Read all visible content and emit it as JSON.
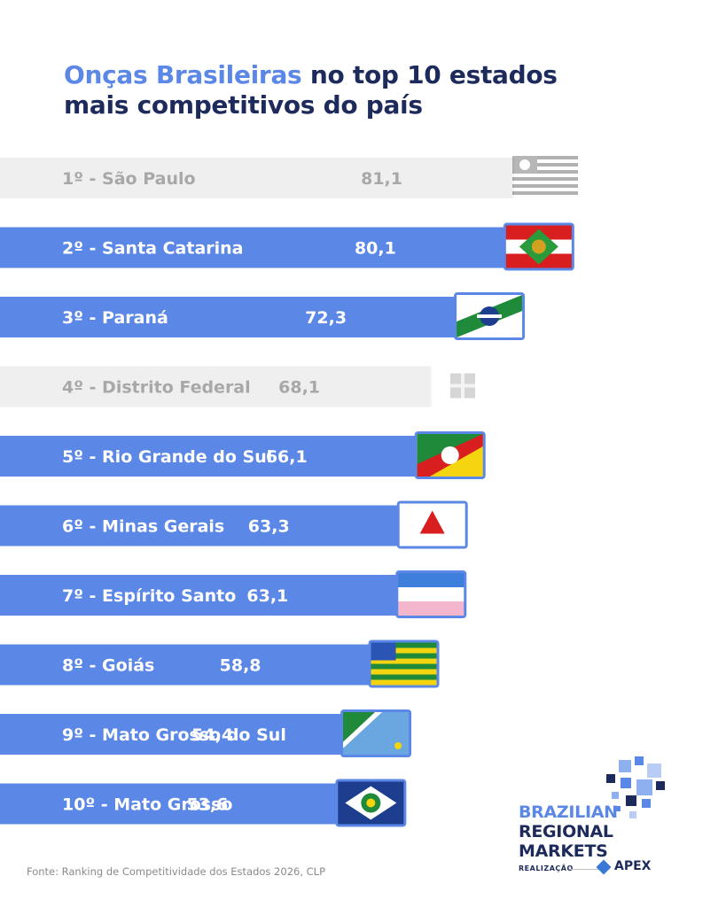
{
  "title": {
    "highlight": "Onças Brasileiras",
    "rest_line1": " no top 10 estados",
    "line2": "mais competitivos do país"
  },
  "chart_data": {
    "type": "bar",
    "orientation": "horizontal",
    "categories": [
      "1º - São Paulo",
      "2º - Santa Catarina",
      "3º - Paraná",
      "4º - Distrito Federal",
      "5º - Rio Grande do Sul",
      "6º - Minas Gerais",
      "7º - Espírito Santo",
      "8º - Goiás",
      "9º - Mato Grosso do Sul",
      "10º - Mato Grosso"
    ],
    "values": [
      81.1,
      80.1,
      72.3,
      68.1,
      66.1,
      63.3,
      63.1,
      58.8,
      54.4,
      53.6
    ],
    "value_labels": [
      "81,1",
      "80,1",
      "72,3",
      "68,1",
      "66,1",
      "63,3",
      "63,1",
      "58,8",
      "54,4",
      "53,6"
    ],
    "highlighted": [
      false,
      true,
      true,
      false,
      true,
      true,
      true,
      true,
      true,
      true
    ],
    "flags": [
      "sao-paulo-flag",
      "santa-catarina-flag",
      "parana-flag",
      "distrito-federal-flag",
      "rio-grande-do-sul-flag",
      "minas-gerais-flag",
      "espirito-santo-flag",
      "goias-flag",
      "mato-grosso-do-sul-flag",
      "mato-grosso-flag"
    ],
    "colors": {
      "highlight": "#5b87e6",
      "muted": "#efefef",
      "muted_text": "#a8a8a8",
      "title_dark": "#1d2a5c"
    }
  },
  "source": "Fonte: Ranking de Competitividade dos Estados 2026, CLP",
  "logo": {
    "line1": "BRAZILIAN",
    "line2": "REGIONAL",
    "line3": "MARKETS",
    "realizacao": "REALIZAÇÃO",
    "apex": "APEX"
  }
}
